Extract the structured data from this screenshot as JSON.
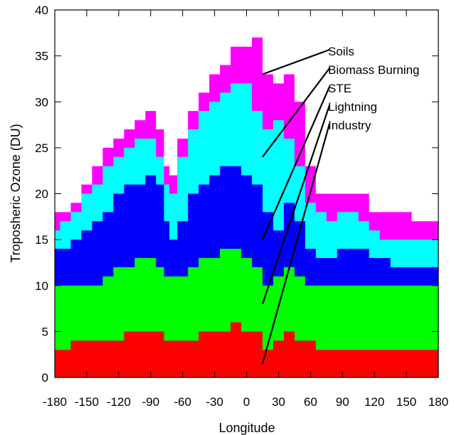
{
  "chart_data": {
    "type": "area",
    "stacked": true,
    "xlabel": "Longitude",
    "ylabel": "Troposheric Ozone (DU)",
    "xlim": [
      -180,
      180
    ],
    "ylim": [
      0,
      40
    ],
    "xticks": [
      -180,
      -150,
      -120,
      -90,
      -60,
      -30,
      0,
      30,
      60,
      90,
      120,
      150,
      180
    ],
    "yticks": [
      0,
      5,
      10,
      15,
      20,
      25,
      30,
      35,
      40
    ],
    "grid": false,
    "x": [
      -180,
      -170,
      -160,
      -150,
      -140,
      -130,
      -120,
      -110,
      -100,
      -90,
      -80,
      -75,
      -70,
      -60,
      -50,
      -40,
      -30,
      -20,
      -10,
      0,
      10,
      20,
      30,
      40,
      50,
      60,
      70,
      80,
      90,
      100,
      110,
      120,
      130,
      140,
      150,
      160,
      170,
      180
    ],
    "cumulative": [
      {
        "name": "Industry",
        "values": [
          3,
          3,
          4,
          4,
          4,
          4,
          4,
          5,
          5,
          5,
          5,
          4,
          4,
          4,
          4,
          5,
          5,
          5,
          6,
          5,
          5,
          3,
          4,
          5,
          4,
          4,
          3,
          3,
          3,
          3,
          3,
          3,
          3,
          3,
          3,
          3,
          3,
          3
        ]
      },
      {
        "name": "Lightning",
        "values": [
          10,
          10,
          10,
          10,
          10,
          11,
          12,
          12,
          13,
          13,
          12,
          11,
          11,
          11,
          12,
          13,
          13,
          14,
          14,
          13,
          12,
          10,
          11,
          12,
          11,
          10,
          10,
          10,
          10,
          10,
          10,
          10,
          10,
          10,
          10,
          10,
          10,
          10
        ]
      },
      {
        "name": "STE",
        "values": [
          14,
          14,
          15,
          16,
          17,
          18,
          20,
          21,
          21,
          22,
          21,
          17,
          15,
          17,
          20,
          21,
          22,
          23,
          23,
          22,
          21,
          18,
          16,
          19,
          17,
          14,
          13,
          13,
          14,
          14,
          14,
          13,
          13,
          12,
          12,
          12,
          12,
          12
        ]
      },
      {
        "name": "Biomass Burning",
        "values": [
          16,
          17,
          18,
          20,
          21,
          23,
          24,
          25,
          26,
          26,
          24,
          21,
          20,
          24,
          27,
          29,
          30,
          31,
          32,
          32,
          29,
          27,
          28,
          26,
          23,
          19,
          18,
          17,
          18,
          18,
          17,
          16,
          15,
          15,
          15,
          15,
          15,
          15
        ]
      },
      {
        "name": "Soils",
        "values": [
          18,
          18,
          19,
          21,
          23,
          25,
          26,
          27,
          28,
          29,
          27,
          23,
          22,
          26,
          29,
          31,
          33,
          34,
          36,
          36,
          37,
          33,
          32,
          33,
          30,
          23,
          20,
          20,
          20,
          20,
          20,
          18,
          18,
          18,
          18,
          17,
          17,
          17
        ]
      }
    ],
    "colors": {
      "Industry": "#ff0000",
      "Lightning": "#00ff00",
      "STE": "#0000ff",
      "Biomass Burning": "#00ffff",
      "Soils": "#ff00ff"
    },
    "legend_labels": [
      "Soils",
      "Biomass Burning",
      "STE",
      "Lightning",
      "Industry"
    ],
    "annotations": [
      {
        "label": "Soils",
        "pointer_x": 15,
        "pointer_y": 33
      },
      {
        "label": "Biomass Burning",
        "pointer_x": 15,
        "pointer_y": 24
      },
      {
        "label": "STE",
        "pointer_x": 15,
        "pointer_y": 15
      },
      {
        "label": "Lightning",
        "pointer_x": 15,
        "pointer_y": 8
      },
      {
        "label": "Industry",
        "pointer_x": 15,
        "pointer_y": 1.5
      }
    ]
  }
}
